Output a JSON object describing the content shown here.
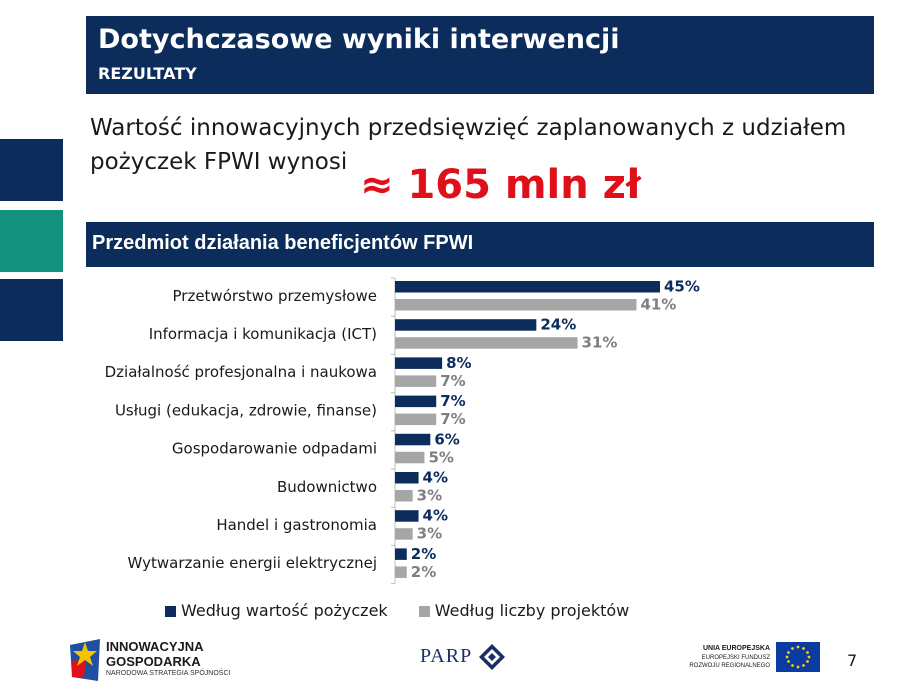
{
  "header": {
    "title": "Dotychczasowe wyniki interwencji",
    "subtitle": "REZULTATY"
  },
  "intro": {
    "line1": "Wartość innowacyjnych przedsięwzięć zaplanowanych z udziałem",
    "line2": "pożyczek FPWI wynosi",
    "highlight": "≈ 165 mln zł"
  },
  "section_title": "Przedmiot działania beneficjentów FPWI",
  "colors": {
    "navy": "#0c2d5c",
    "gray": "#a6a6a6",
    "teal": "#14907f",
    "red": "#e0101a"
  },
  "chart_data": {
    "type": "bar",
    "orientation": "horizontal",
    "title": "Przedmiot działania beneficjentów FPWI",
    "categories": [
      "Przetwórstwo przemysłowe",
      "Informacja i komunikacja (ICT)",
      "Działalność profesjonalna i naukowa",
      "Usługi (edukacja, zdrowie, finanse)",
      "Gospodarowanie odpadami",
      "Budownictwo",
      "Handel i gastronomia",
      "Wytwarzanie energii elektrycznej"
    ],
    "series": [
      {
        "name": "Według wartość pożyczek",
        "color": "#0c2d5c",
        "values": [
          45,
          24,
          8,
          7,
          6,
          4,
          4,
          2
        ],
        "labels": [
          "45%",
          "24%",
          "8%",
          "7%",
          "6%",
          "4%",
          "4%",
          "2%"
        ]
      },
      {
        "name": "Według liczby projektów",
        "color": "#a6a6a6",
        "values": [
          41,
          31,
          7,
          7,
          5,
          3,
          3,
          2
        ],
        "labels": [
          "41%",
          "31%",
          "7%",
          "7%",
          "5%",
          "3%",
          "3%",
          "2%"
        ]
      }
    ],
    "xlim": [
      0,
      50
    ],
    "unit": "%",
    "grid": false,
    "legend": "bottom"
  },
  "footer": {
    "logo_left": {
      "line1": "INNOWACYJNA",
      "line2": "GOSPODARKA",
      "line3": "NARODOWA STRATEGIA SPÓJNOŚCI"
    },
    "logo_center": "PARP",
    "logo_right": {
      "line1": "UNIA EUROPEJSKA",
      "line2": "EUROPEJSKI FUNDUSZ",
      "line3": "ROZWOJU REGIONALNEGO"
    },
    "page_number": "7"
  }
}
